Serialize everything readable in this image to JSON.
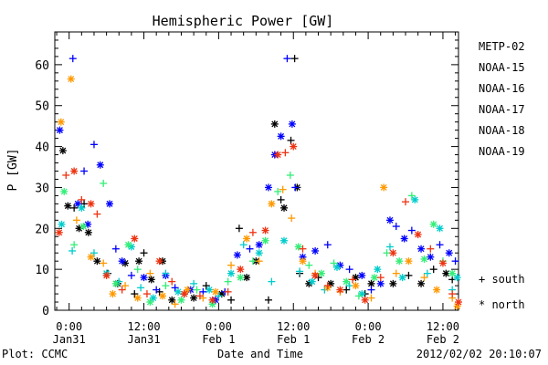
{
  "chart_data": {
    "type": "scatter",
    "title": "Hemispheric Power [GW]",
    "ylabel": "P [GW]",
    "xlabel": "Date and Time",
    "footer_left": "Plot: CCMC",
    "footer_right": "2012/02/02 20:10:07",
    "ylim": [
      0,
      68
    ],
    "xlim": [
      -2.3,
      62.5
    ],
    "x_unit": "hours since 2012-01-31 00:00",
    "y_ticks": [
      0,
      10,
      20,
      30,
      40,
      50,
      60
    ],
    "x_ticks": [
      {
        "x": 0,
        "line1": "0:00",
        "line2": "Jan31"
      },
      {
        "x": 12,
        "line1": "12:00",
        "line2": "Jan31"
      },
      {
        "x": 24,
        "line1": "0:00",
        "line2": "Feb 1"
      },
      {
        "x": 36,
        "line1": "12:00",
        "line2": "Feb 1"
      },
      {
        "x": 48,
        "line1": "0:00",
        "line2": "Feb 2"
      },
      {
        "x": 60,
        "line1": "12:00",
        "line2": "Feb 2"
      }
    ],
    "legend_position": "right",
    "marker_legend": [
      {
        "symbol": "+",
        "label": "south"
      },
      {
        "symbol": "*",
        "label": "north"
      }
    ],
    "series": [
      {
        "name": "METP-02",
        "color": "#000000",
        "points": [
          [
            -1.0,
            39.0,
            "*"
          ],
          [
            -0.2,
            25.5,
            "*"
          ],
          [
            0.8,
            25.0,
            "+"
          ],
          [
            1.6,
            20.0,
            "*"
          ],
          [
            2.4,
            26.0,
            "+"
          ],
          [
            3.1,
            19.0,
            "*"
          ],
          [
            4.5,
            12.0,
            "*"
          ],
          [
            6.2,
            9.0,
            "+"
          ],
          [
            7.8,
            6.5,
            "*"
          ],
          [
            9.0,
            11.5,
            "*"
          ],
          [
            10.5,
            4.0,
            "+"
          ],
          [
            11.2,
            12.0,
            "*"
          ],
          [
            12.0,
            14.0,
            "+"
          ],
          [
            13.2,
            7.5,
            "*"
          ],
          [
            14.5,
            4.5,
            "+"
          ],
          [
            15.0,
            12.0,
            "*"
          ],
          [
            16.5,
            2.5,
            "*"
          ],
          [
            18.5,
            4.0,
            "+"
          ],
          [
            20.0,
            3.0,
            "*"
          ],
          [
            22.0,
            6.0,
            "+"
          ],
          [
            24.5,
            4.0,
            "*"
          ],
          [
            26.0,
            2.5,
            "+"
          ],
          [
            27.3,
            20.0,
            "+"
          ],
          [
            28.5,
            8.0,
            "*"
          ],
          [
            30.0,
            12.0,
            "*"
          ],
          [
            32.0,
            2.5,
            "+"
          ],
          [
            33.0,
            45.5,
            "*"
          ],
          [
            34.0,
            27.0,
            "+"
          ],
          [
            34.5,
            25.0,
            "*"
          ],
          [
            35.6,
            41.5,
            "+"
          ],
          [
            36.2,
            61.5,
            "+"
          ],
          [
            36.6,
            30.0,
            "*"
          ],
          [
            37.0,
            9.0,
            "+"
          ],
          [
            38.5,
            6.5,
            "*"
          ],
          [
            40.0,
            8.0,
            "+"
          ],
          [
            42.0,
            6.5,
            "*"
          ],
          [
            44.5,
            5.0,
            "+"
          ],
          [
            46.0,
            8.0,
            "*"
          ],
          [
            47.5,
            4.0,
            "+"
          ],
          [
            48.5,
            6.5,
            "*"
          ],
          [
            52.0,
            6.5,
            "*"
          ],
          [
            54.5,
            8.5,
            "+"
          ],
          [
            56.5,
            6.5,
            "*"
          ],
          [
            58.5,
            10.0,
            "+"
          ],
          [
            60.5,
            9.0,
            "*"
          ],
          [
            61.5,
            7.5,
            "+"
          ]
        ]
      },
      {
        "name": "NOAA-15",
        "color": "#0000ff",
        "points": [
          [
            -1.5,
            44.0,
            "*"
          ],
          [
            0.6,
            61.5,
            "+"
          ],
          [
            1.4,
            26.0,
            "*"
          ],
          [
            2.4,
            34.0,
            "+"
          ],
          [
            3.0,
            21.0,
            "*"
          ],
          [
            4.0,
            40.5,
            "+"
          ],
          [
            5.0,
            35.5,
            "*"
          ],
          [
            6.5,
            26.0,
            "*"
          ],
          [
            7.5,
            15.0,
            "+"
          ],
          [
            8.5,
            12.0,
            "*"
          ],
          [
            10.0,
            8.5,
            "+"
          ],
          [
            12.0,
            8.0,
            "*"
          ],
          [
            14.0,
            5.0,
            "+"
          ],
          [
            15.5,
            8.5,
            "*"
          ],
          [
            17.0,
            5.5,
            "+"
          ],
          [
            19.5,
            5.0,
            "*"
          ],
          [
            21.5,
            4.5,
            "+"
          ],
          [
            23.5,
            2.5,
            "*"
          ],
          [
            25.0,
            4.5,
            "+"
          ],
          [
            27.0,
            13.5,
            "*"
          ],
          [
            29.0,
            15.0,
            "+"
          ],
          [
            30.5,
            16.0,
            "*"
          ],
          [
            32.0,
            30.0,
            "*"
          ],
          [
            33.0,
            38.0,
            "*"
          ],
          [
            34.0,
            42.5,
            "*"
          ],
          [
            35.0,
            61.5,
            "+"
          ],
          [
            35.8,
            45.5,
            "*"
          ],
          [
            36.3,
            30.0,
            "+"
          ],
          [
            37.5,
            13.0,
            "*"
          ],
          [
            39.5,
            14.5,
            "*"
          ],
          [
            41.5,
            16.0,
            "+"
          ],
          [
            43.5,
            11.0,
            "*"
          ],
          [
            45.0,
            10.0,
            "+"
          ],
          [
            47.0,
            8.5,
            "*"
          ],
          [
            48.5,
            5.0,
            "+"
          ],
          [
            50.0,
            6.5,
            "*"
          ],
          [
            51.5,
            22.0,
            "*"
          ],
          [
            52.5,
            20.5,
            "+"
          ],
          [
            53.8,
            17.5,
            "*"
          ],
          [
            55.0,
            19.5,
            "+"
          ],
          [
            56.5,
            15.0,
            "*"
          ],
          [
            58.0,
            13.0,
            "*"
          ],
          [
            59.5,
            16.0,
            "+"
          ],
          [
            61.0,
            14.0,
            "*"
          ],
          [
            62.0,
            12.0,
            "+"
          ]
        ]
      },
      {
        "name": "NOAA-16",
        "color": "#00cccc",
        "points": [
          [
            -1.2,
            21.0,
            "*"
          ],
          [
            0.5,
            14.5,
            "+"
          ],
          [
            2.0,
            25.0,
            "*"
          ],
          [
            4.0,
            14.0,
            "+"
          ],
          [
            6.0,
            9.0,
            "*"
          ],
          [
            8.0,
            7.0,
            "+"
          ],
          [
            10.0,
            15.5,
            "*"
          ],
          [
            11.5,
            5.5,
            "+"
          ],
          [
            13.5,
            3.0,
            "*"
          ],
          [
            15.5,
            9.0,
            "+"
          ],
          [
            17.5,
            4.5,
            "*"
          ],
          [
            20.0,
            6.5,
            "+"
          ],
          [
            22.5,
            5.0,
            "*"
          ],
          [
            24.0,
            3.5,
            "+"
          ],
          [
            26.0,
            9.0,
            "*"
          ],
          [
            28.0,
            16.0,
            "+"
          ],
          [
            30.5,
            14.0,
            "*"
          ],
          [
            32.5,
            7.0,
            "+"
          ],
          [
            34.5,
            17.0,
            "*"
          ],
          [
            37.0,
            9.5,
            "+"
          ],
          [
            39.0,
            7.0,
            "*"
          ],
          [
            41.0,
            5.0,
            "+"
          ],
          [
            43.0,
            10.5,
            "*"
          ],
          [
            45.0,
            6.0,
            "+"
          ],
          [
            47.0,
            4.0,
            "*"
          ],
          [
            49.5,
            10.0,
            "*"
          ],
          [
            51.5,
            15.5,
            "+"
          ],
          [
            53.5,
            8.0,
            "*"
          ],
          [
            55.5,
            27.0,
            "*"
          ],
          [
            57.5,
            9.0,
            "+"
          ],
          [
            59.5,
            20.0,
            "*"
          ],
          [
            61.5,
            5.0,
            "+"
          ],
          [
            62.3,
            8.0,
            "*"
          ]
        ]
      },
      {
        "name": "NOAA-17",
        "color": "#33ee77",
        "points": [
          [
            -0.8,
            29.0,
            "*"
          ],
          [
            0.8,
            16.0,
            "+"
          ],
          [
            2.3,
            20.5,
            "*"
          ],
          [
            5.5,
            31.0,
            "+"
          ],
          [
            7.5,
            6.5,
            "*"
          ],
          [
            9.5,
            16.0,
            "*"
          ],
          [
            11.0,
            10.0,
            "+"
          ],
          [
            13.0,
            2.0,
            "*"
          ],
          [
            15.5,
            6.0,
            "+"
          ],
          [
            18.0,
            2.5,
            "*"
          ],
          [
            20.5,
            5.0,
            "+"
          ],
          [
            23.0,
            1.5,
            "*"
          ],
          [
            25.5,
            7.0,
            "+"
          ],
          [
            27.5,
            8.0,
            "*"
          ],
          [
            29.5,
            12.0,
            "+"
          ],
          [
            31.5,
            17.0,
            "*"
          ],
          [
            33.5,
            29.0,
            "+"
          ],
          [
            35.5,
            33.0,
            "+"
          ],
          [
            36.8,
            15.5,
            "*"
          ],
          [
            38.5,
            11.0,
            "+"
          ],
          [
            40.5,
            9.0,
            "*"
          ],
          [
            42.5,
            11.5,
            "+"
          ],
          [
            44.5,
            7.0,
            "*"
          ],
          [
            46.5,
            3.5,
            "+"
          ],
          [
            49.0,
            8.0,
            "*"
          ],
          [
            51.0,
            14.0,
            "+"
          ],
          [
            53.0,
            12.0,
            "*"
          ],
          [
            55.0,
            28.0,
            "+"
          ],
          [
            57.0,
            12.5,
            "*"
          ],
          [
            58.5,
            21.0,
            "*"
          ],
          [
            60.0,
            12.0,
            "+"
          ],
          [
            61.5,
            9.0,
            "*"
          ]
        ]
      },
      {
        "name": "NOAA-18",
        "color": "#ff9900",
        "points": [
          [
            -1.3,
            46.0,
            "*"
          ],
          [
            0.3,
            56.5,
            "*"
          ],
          [
            1.2,
            22.0,
            "+"
          ],
          [
            3.5,
            13.0,
            "*"
          ],
          [
            5.5,
            11.5,
            "+"
          ],
          [
            7.0,
            4.0,
            "*"
          ],
          [
            9.0,
            6.0,
            "+"
          ],
          [
            11.0,
            3.0,
            "*"
          ],
          [
            13.0,
            9.0,
            "+"
          ],
          [
            15.0,
            3.5,
            "*"
          ],
          [
            17.0,
            1.5,
            "+"
          ],
          [
            19.0,
            5.0,
            "*"
          ],
          [
            21.5,
            3.0,
            "+"
          ],
          [
            23.5,
            4.5,
            "*"
          ],
          [
            26.0,
            11.0,
            "+"
          ],
          [
            28.5,
            17.5,
            "*"
          ],
          [
            30.5,
            12.0,
            "+"
          ],
          [
            32.5,
            26.0,
            "*"
          ],
          [
            34.3,
            29.5,
            "+"
          ],
          [
            35.7,
            22.5,
            "+"
          ],
          [
            37.5,
            12.0,
            "*"
          ],
          [
            39.5,
            9.0,
            "+"
          ],
          [
            41.5,
            5.5,
            "*"
          ],
          [
            43.5,
            4.5,
            "+"
          ],
          [
            46.0,
            6.0,
            "*"
          ],
          [
            48.5,
            3.0,
            "+"
          ],
          [
            50.5,
            30.0,
            "*"
          ],
          [
            52.5,
            9.0,
            "+"
          ],
          [
            54.5,
            12.0,
            "*"
          ],
          [
            57.0,
            8.0,
            "+"
          ],
          [
            59.0,
            5.0,
            "*"
          ],
          [
            61.5,
            3.0,
            "+"
          ],
          [
            62.3,
            1.0,
            "*"
          ]
        ]
      },
      {
        "name": "NOAA-19",
        "color": "#ee3311",
        "points": [
          [
            -1.6,
            19.0,
            "*"
          ],
          [
            -0.5,
            33.0,
            "+"
          ],
          [
            0.8,
            34.0,
            "*"
          ],
          [
            2.0,
            27.0,
            "+"
          ],
          [
            3.5,
            26.0,
            "*"
          ],
          [
            4.5,
            23.5,
            "+"
          ],
          [
            6.0,
            8.5,
            "*"
          ],
          [
            8.5,
            5.0,
            "+"
          ],
          [
            10.5,
            17.5,
            "*"
          ],
          [
            12.5,
            4.0,
            "+"
          ],
          [
            14.5,
            12.0,
            "*"
          ],
          [
            16.5,
            7.0,
            "+"
          ],
          [
            18.5,
            4.0,
            "*"
          ],
          [
            21.0,
            3.5,
            "+"
          ],
          [
            23.0,
            2.5,
            "*"
          ],
          [
            25.5,
            4.5,
            "+"
          ],
          [
            27.5,
            10.0,
            "*"
          ],
          [
            29.5,
            19.0,
            "+"
          ],
          [
            31.5,
            19.5,
            "*"
          ],
          [
            33.5,
            38.0,
            "*"
          ],
          [
            34.7,
            38.5,
            "+"
          ],
          [
            36.0,
            40.0,
            "*"
          ],
          [
            37.5,
            15.0,
            "+"
          ],
          [
            39.5,
            8.5,
            "*"
          ],
          [
            41.5,
            6.0,
            "+"
          ],
          [
            43.5,
            5.0,
            "*"
          ],
          [
            45.5,
            7.5,
            "+"
          ],
          [
            47.5,
            2.5,
            "*"
          ],
          [
            50.0,
            8.0,
            "+"
          ],
          [
            52.0,
            14.0,
            "*"
          ],
          [
            54.0,
            26.5,
            "+"
          ],
          [
            56.0,
            18.5,
            "*"
          ],
          [
            58.0,
            15.0,
            "+"
          ],
          [
            60.0,
            11.5,
            "*"
          ],
          [
            61.5,
            4.0,
            "+"
          ],
          [
            62.5,
            2.0,
            "*"
          ]
        ]
      }
    ]
  }
}
